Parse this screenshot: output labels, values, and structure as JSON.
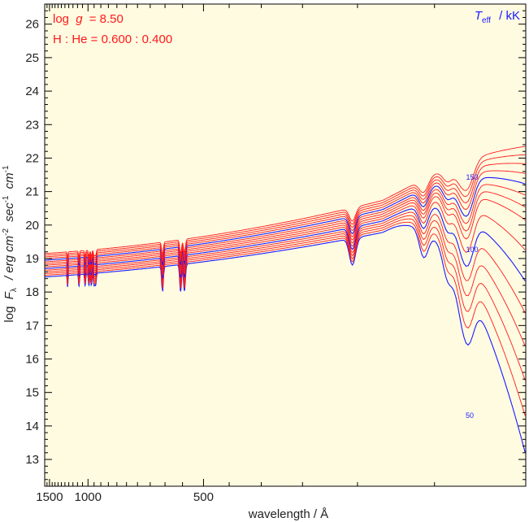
{
  "chart_data": {
    "type": "line",
    "title": "",
    "xlabel": "wavelength / Å",
    "ylabel_parts": {
      "log": "log",
      "F": "F",
      "F_sub": "λ",
      "units": "/ erg cm",
      "exp1": "-2",
      "sec": "sec",
      "exp2": "-1",
      "cm": "cm",
      "exp3": "-1"
    },
    "x_axis": {
      "reversed": true,
      "scale": "reciprocal",
      "range": [
        1600,
        0
      ],
      "ticks": [
        "1500",
        "1000",
        "500"
      ],
      "tick_values": [
        1500,
        1000,
        500
      ]
    },
    "y_axis": {
      "range": [
        12.2,
        26.6
      ],
      "ticks": [
        "13",
        "14",
        "15",
        "16",
        "17",
        "18",
        "19",
        "20",
        "21",
        "22",
        "23",
        "24",
        "25",
        "26"
      ]
    },
    "annotations": {
      "logg_prefix": "log",
      "logg_var": "g",
      "logg_value": "= 8.50",
      "composition": "H : He = 0.600 : 0.400",
      "teff_var": "T",
      "teff_sub": "eff",
      "teff_unit": "/ kK"
    },
    "curve_labels": [
      "150",
      "100",
      "50"
    ],
    "temperatures_kK": [
      50,
      60,
      70,
      80,
      90,
      100,
      110,
      120,
      130,
      140,
      150,
      160,
      170,
      180,
      190
    ],
    "highlighted_kK": [
      50,
      100,
      150
    ],
    "colors": {
      "background": "#fffbe1",
      "normal": "#ff1a1a",
      "highlight": "#1a1aff",
      "frame": "#000000"
    },
    "absorption_lines_A": [
      1640,
      1215,
      1085,
      1026,
      992,
      972,
      950,
      938,
      608,
      555,
      545,
      304,
      256,
      243,
      237,
      234,
      232
    ]
  }
}
